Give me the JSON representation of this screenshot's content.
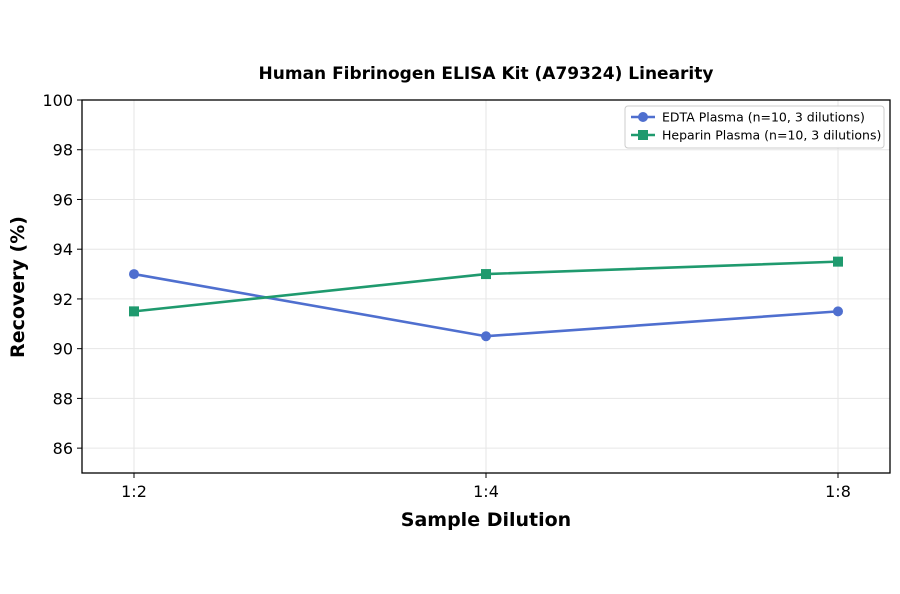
{
  "chart_data": {
    "type": "line",
    "title": "Human Fibrinogen ELISA Kit (A79324) Linearity",
    "xlabel": "Sample Dilution",
    "ylabel": "Recovery (%)",
    "categories": [
      "1:2",
      "1:4",
      "1:8"
    ],
    "ylim": [
      85,
      100
    ],
    "yticks": [
      86,
      88,
      90,
      92,
      94,
      96,
      98,
      100
    ],
    "grid": true,
    "legend_position": "top-right",
    "series": [
      {
        "name": "EDTA Plasma (n=10, 3 dilutions)",
        "values": [
          93.0,
          90.5,
          91.5
        ],
        "color": "#4f6fcf",
        "marker": "circle"
      },
      {
        "name": "Heparin Plasma (n=10, 3 dilutions)",
        "values": [
          91.5,
          93.0,
          93.5
        ],
        "color": "#1f9a6e",
        "marker": "square"
      }
    ]
  }
}
